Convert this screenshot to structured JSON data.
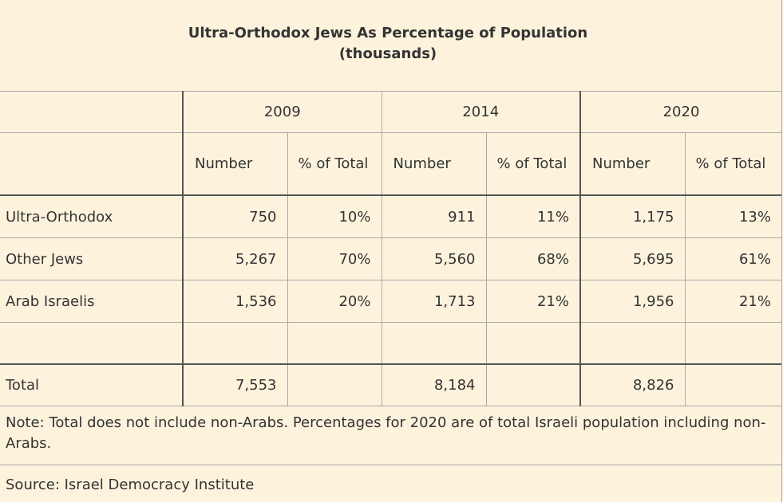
{
  "title": {
    "line1": "Ultra-Orthodox Jews As Percentage of Population",
    "line2": "(thousands)"
  },
  "chart_data": {
    "type": "table",
    "years": [
      "2009",
      "2014",
      "2020"
    ],
    "subheaders": {
      "number": "Number",
      "pct": "% of Total"
    },
    "rows": [
      {
        "label": "Ultra-Orthodox",
        "cells": [
          "750",
          "10%",
          "911",
          "11%",
          "1,175",
          "13%"
        ]
      },
      {
        "label": "Other Jews",
        "cells": [
          "5,267",
          "70%",
          "5,560",
          "68%",
          "5,695",
          "61%"
        ]
      },
      {
        "label": "Arab Israelis",
        "cells": [
          "1,536",
          "20%",
          "1,713",
          "21%",
          "1,956",
          "21%"
        ]
      }
    ],
    "total": {
      "label": "Total",
      "cells": [
        "7,553",
        "",
        "8,184",
        "",
        "8,826",
        ""
      ]
    }
  },
  "note": "Note: Total does not include non-Arabs. Percentages for 2020 are of total Israeli population including non-Arabs.",
  "source": "Source: Israel Democracy Institute"
}
